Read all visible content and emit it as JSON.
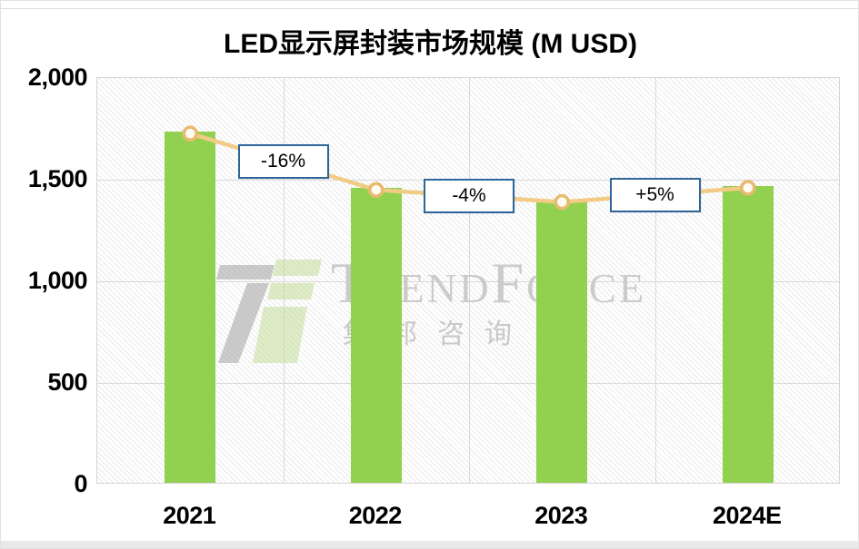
{
  "chart_data": {
    "type": "bar",
    "title": "LED显示屏封装市场规模 (M USD)",
    "categories": [
      "2021",
      "2022",
      "2023",
      "2024E"
    ],
    "values": [
      1727,
      1450,
      1390,
      1460
    ],
    "series": [
      {
        "name": "LED显示屏封装市场规模 (bar)",
        "type": "bar",
        "values": [
          1727,
          1450,
          1390,
          1460
        ]
      },
      {
        "name": "LED显示屏封装市场规模 (line)",
        "type": "line",
        "values": [
          1727,
          1450,
          1390,
          1460
        ]
      }
    ],
    "growth_labels": [
      "-16%",
      "-4%",
      "+5%"
    ],
    "ylim": [
      0,
      2000
    ],
    "yticks": [
      {
        "value": 0,
        "label": "0"
      },
      {
        "value": 500,
        "label": "500"
      },
      {
        "value": 1000,
        "label": "1,000"
      },
      {
        "value": 1500,
        "label": "1,500"
      },
      {
        "value": 2000,
        "label": "2,000"
      }
    ],
    "grid": true,
    "legend_position": "none",
    "plot_background": "light-diagonal-hatch"
  },
  "colors": {
    "bar": "#92D050",
    "line": "#F2CB84",
    "marker_fill": "#FFFDF2",
    "marker_stroke": "#E8BB71",
    "annotation_border": "#2E6699",
    "annotation_text": "#000000",
    "gridline": "#D9D9D9",
    "axis_text": "#000000",
    "watermark_gray": "#ACACAC",
    "watermark_green": "#C3DE9B"
  },
  "watermark": {
    "brand": "TrendForce",
    "brand_cn": "集邦咨询"
  }
}
